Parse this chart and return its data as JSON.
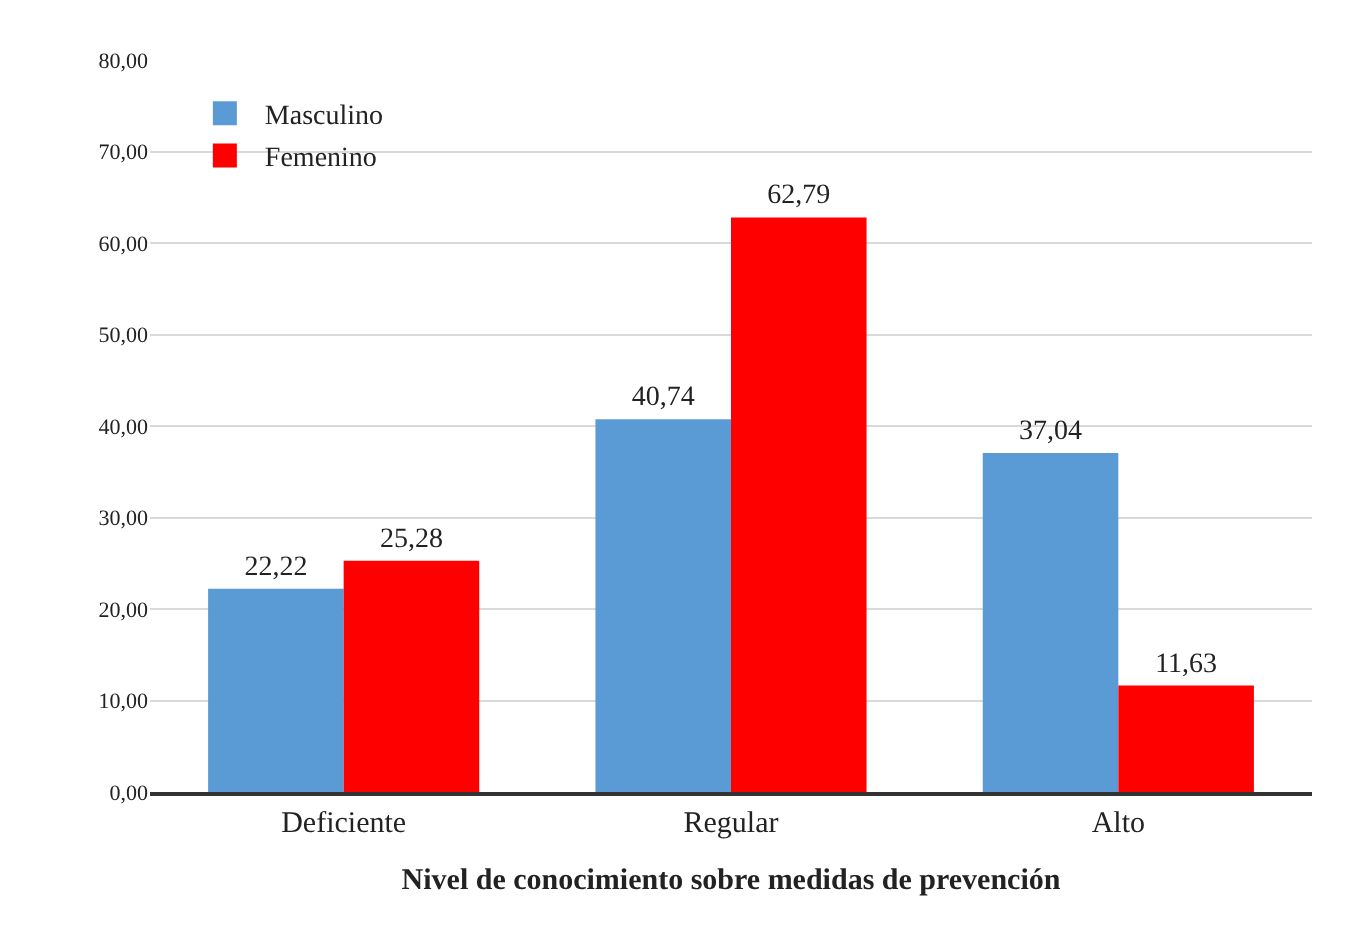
{
  "chart_data": {
    "type": "bar",
    "xlabel": "Nivel de conocimiento sobre medidas de prevención",
    "categories": [
      "Deficiente",
      "Regular",
      "Alto"
    ],
    "series": [
      {
        "name": "Masculino",
        "color": "#5b9bd5",
        "values": [
          22.22,
          40.74,
          37.04
        ],
        "value_labels": [
          "22,22",
          "40,74",
          "37,04"
        ]
      },
      {
        "name": "Femenino",
        "color": "#ff0000",
        "values": [
          25.28,
          62.79,
          11.63
        ],
        "value_labels": [
          "25,28",
          "62,79",
          "11,63"
        ]
      }
    ],
    "ylim": [
      0,
      80
    ],
    "yticks": [
      {
        "value": 0,
        "label": "0,00"
      },
      {
        "value": 10,
        "label": "10,00"
      },
      {
        "value": 20,
        "label": "20,00"
      },
      {
        "value": 30,
        "label": "30,00"
      },
      {
        "value": 40,
        "label": "40,00"
      },
      {
        "value": 50,
        "label": "50,00"
      },
      {
        "value": 60,
        "label": "60,00"
      },
      {
        "value": 70,
        "label": "70,00"
      },
      {
        "value": 80,
        "label": "80,00"
      }
    ],
    "grid": "y",
    "legend": "top left"
  }
}
